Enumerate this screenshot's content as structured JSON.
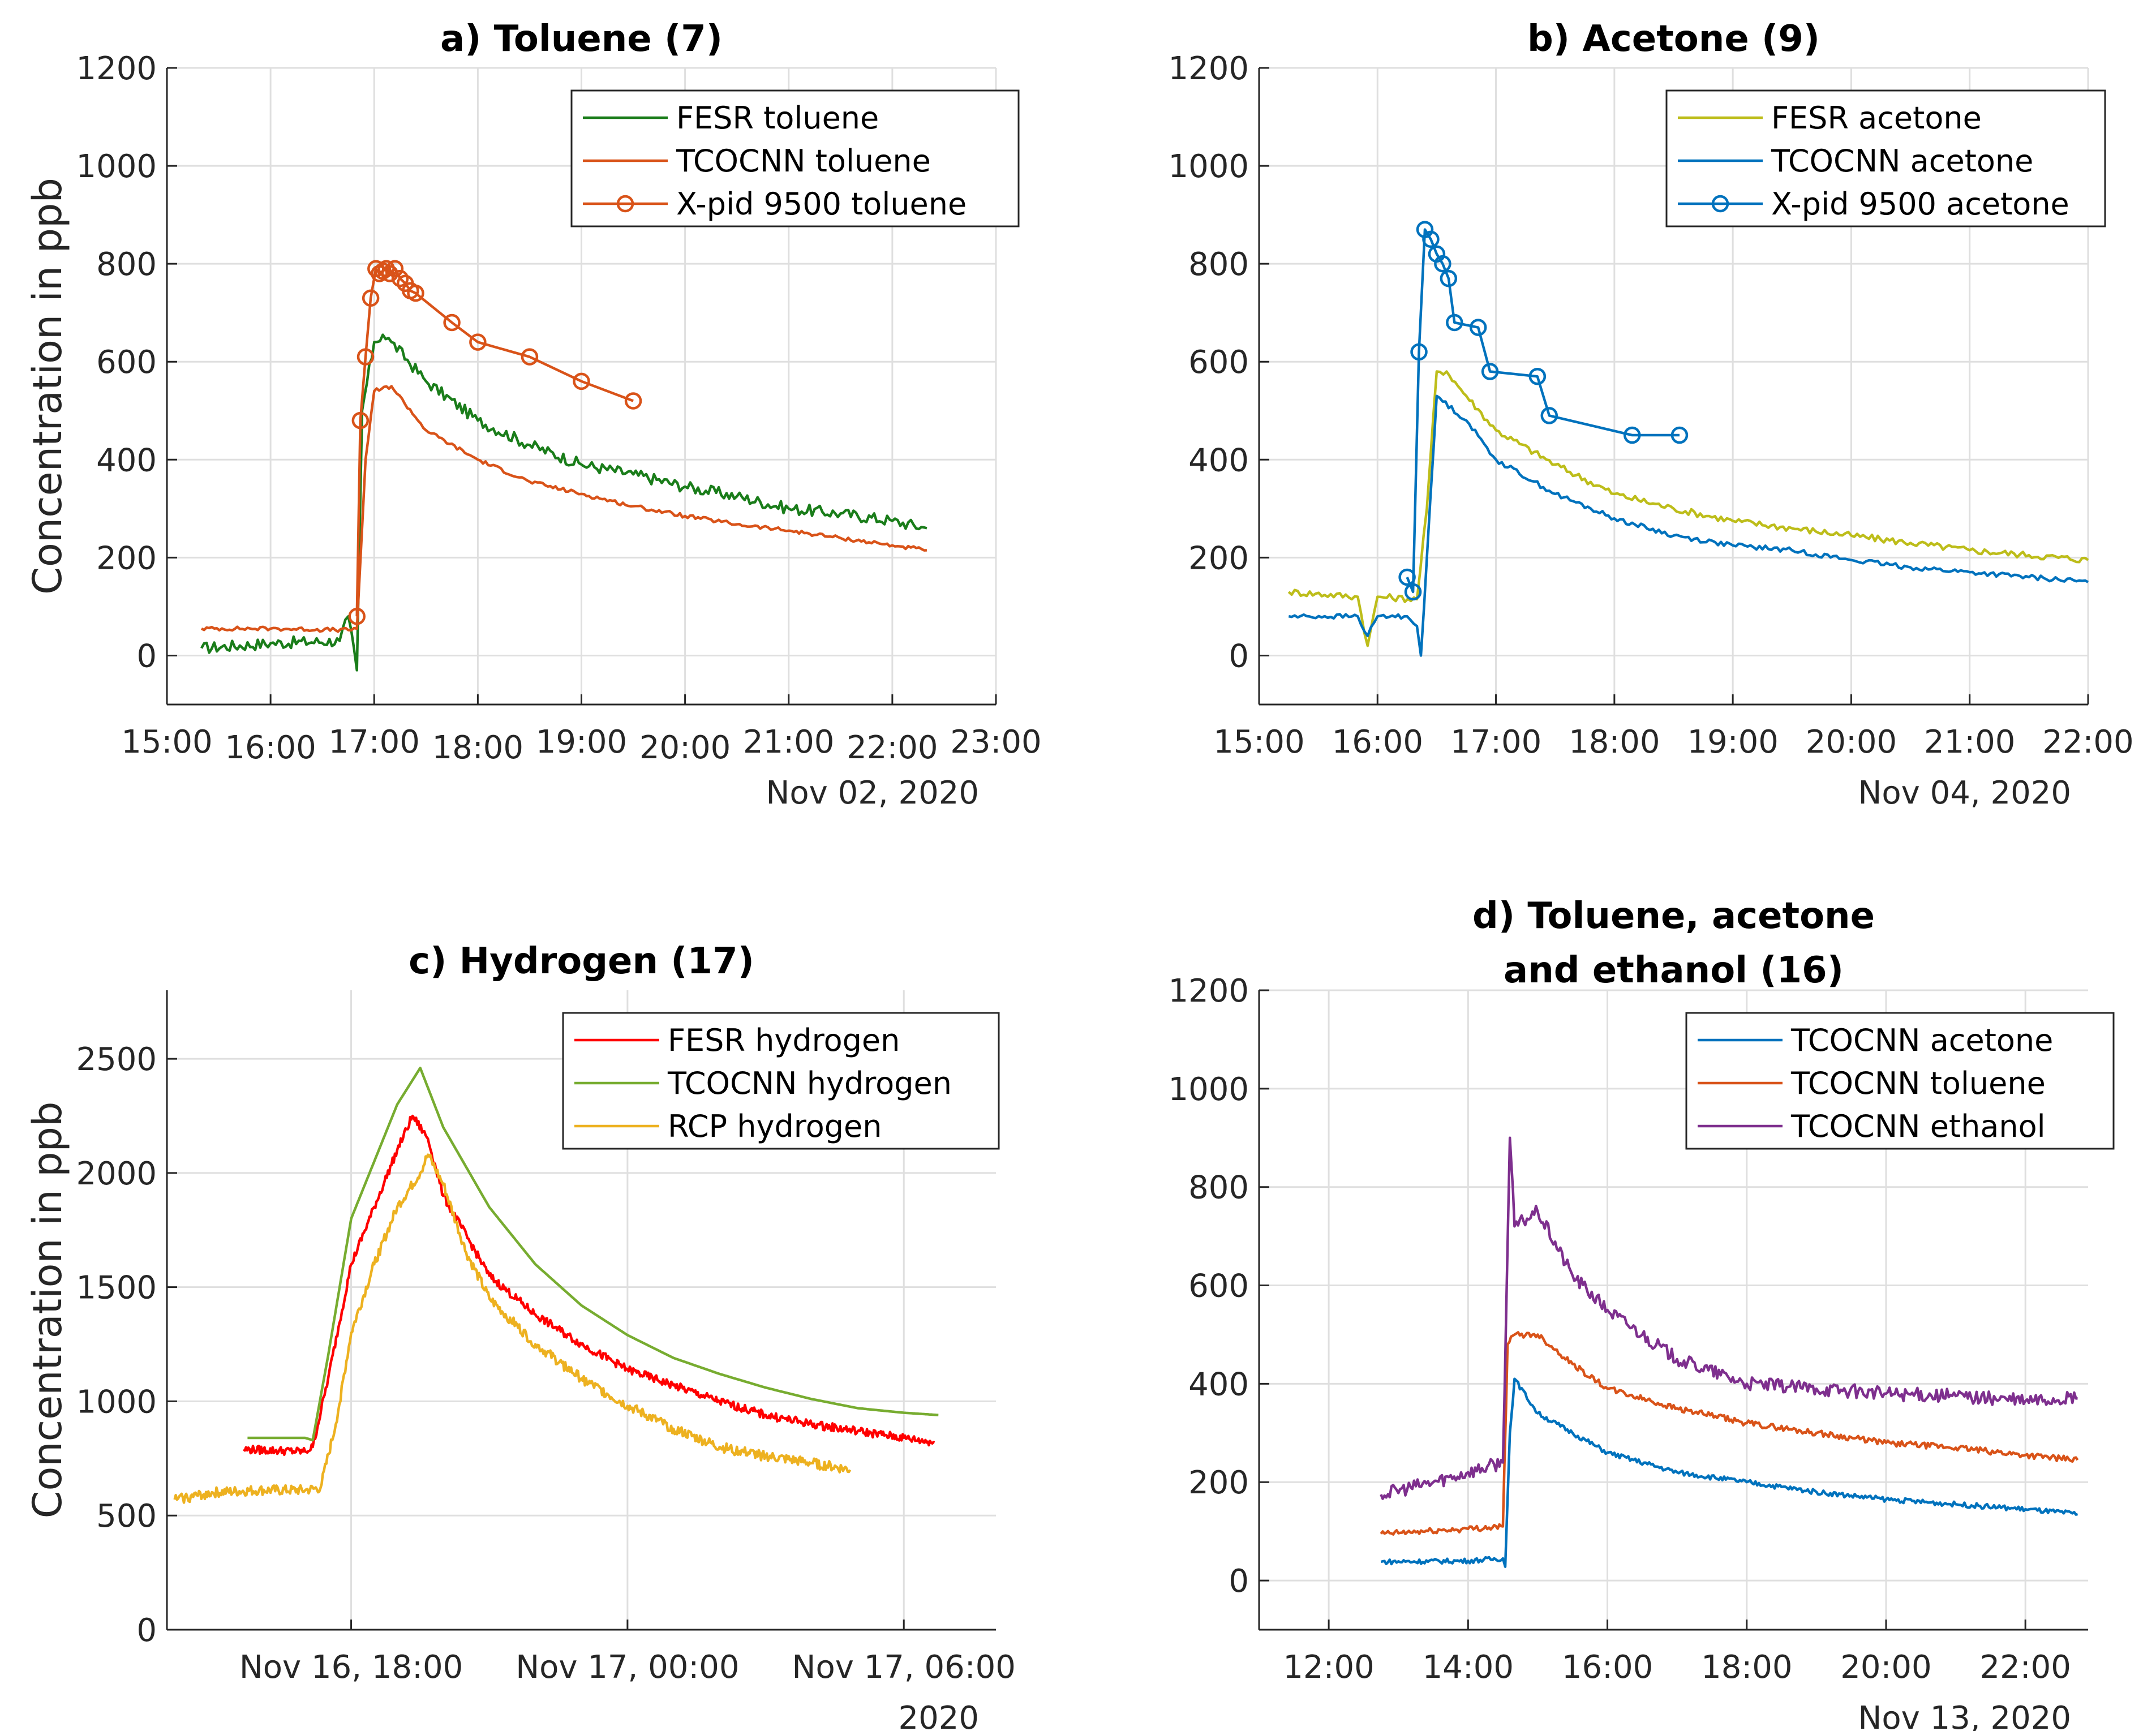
{
  "figure": {
    "ylabel": "Concentration in ppb"
  },
  "chart_data": [
    {
      "id": "a",
      "type": "line",
      "title": "a) Toluene (7)",
      "ylabel": "Concentration in ppb",
      "ylim": [
        -100,
        1200
      ],
      "yticks": [
        0,
        200,
        400,
        600,
        800,
        1000,
        1200
      ],
      "xlim": [
        15.0,
        23.0
      ],
      "xticks": [
        {
          "v": 15,
          "label": "15:00"
        },
        {
          "v": 16,
          "label": "16:00"
        },
        {
          "v": 17,
          "label": "17:00"
        },
        {
          "v": 18,
          "label": "18:00"
        },
        {
          "v": 19,
          "label": "19:00"
        },
        {
          "v": 20,
          "label": "20:00"
        },
        {
          "v": 21,
          "label": "21:00"
        },
        {
          "v": 22,
          "label": "22:00"
        },
        {
          "v": 23,
          "label": "23:00"
        }
      ],
      "date_label": "Nov 02, 2020",
      "grid": true,
      "legend": "top-right",
      "series": [
        {
          "name": "FESR toluene",
          "color": "#1a7d1a",
          "noise": 12,
          "x": [
            "15:20",
            "16:00",
            "16:40",
            "16:45",
            "16:50",
            "16:53",
            "17:00",
            "17:05",
            "17:10",
            "17:30",
            "18:00",
            "18:30",
            "19:00",
            "19:30",
            "20:00",
            "20:30",
            "21:00",
            "21:30",
            "22:00",
            "22:20"
          ],
          "y": [
            15,
            25,
            30,
            80,
            -30,
            500,
            640,
            655,
            640,
            560,
            480,
            430,
            390,
            370,
            345,
            325,
            300,
            290,
            275,
            260
          ]
        },
        {
          "name": "TCOCNN toluene",
          "color": "#d95319",
          "noise": 4,
          "x": [
            "15:20",
            "16:00",
            "16:45",
            "16:50",
            "16:55",
            "17:00",
            "17:10",
            "17:30",
            "18:00",
            "18:30",
            "19:00",
            "19:30",
            "20:00",
            "20:30",
            "21:00",
            "21:30",
            "22:00",
            "22:20"
          ],
          "y": [
            55,
            55,
            52,
            55,
            400,
            540,
            550,
            460,
            400,
            355,
            330,
            305,
            285,
            268,
            255,
            240,
            225,
            215
          ]
        },
        {
          "name": "X-pid 9500 toluene",
          "color": "#d95319",
          "marker": "circle",
          "x": [
            "16:50",
            "16:52",
            "16:55",
            "16:58",
            "17:01",
            "17:03",
            "17:05",
            "17:07",
            "17:09",
            "17:12",
            "17:15",
            "17:18",
            "17:21",
            "17:24",
            "17:45",
            "18:00",
            "18:30",
            "19:00",
            "19:30"
          ],
          "y": [
            80,
            480,
            610,
            730,
            790,
            780,
            785,
            790,
            780,
            790,
            770,
            760,
            745,
            740,
            680,
            640,
            610,
            560,
            520
          ]
        }
      ]
    },
    {
      "id": "b",
      "type": "line",
      "title": "b) Acetone (9)",
      "ylabel": "",
      "ylim": [
        -100,
        1200
      ],
      "yticks": [
        0,
        200,
        400,
        600,
        800,
        1000,
        1200
      ],
      "xlim": [
        15.0,
        22.0
      ],
      "xticks": [
        {
          "v": 15,
          "label": "15:00"
        },
        {
          "v": 16,
          "label": "16:00"
        },
        {
          "v": 17,
          "label": "17:00"
        },
        {
          "v": 18,
          "label": "18:00"
        },
        {
          "v": 19,
          "label": "19:00"
        },
        {
          "v": 20,
          "label": "20:00"
        },
        {
          "v": 21,
          "label": "21:00"
        },
        {
          "v": 22,
          "label": "22:00"
        }
      ],
      "date_label": "Nov 04, 2020",
      "grid": true,
      "legend": "top-right",
      "series": [
        {
          "name": "FESR acetone",
          "color": "#bdbd1a",
          "noise": 7,
          "x": [
            "15:15",
            "15:50",
            "15:55",
            "16:00",
            "16:20",
            "16:25",
            "16:30",
            "16:35",
            "16:45",
            "17:00",
            "17:30",
            "18:00",
            "18:30",
            "19:00",
            "19:30",
            "20:00",
            "20:30",
            "21:00",
            "21:30",
            "22:00"
          ],
          "y": [
            130,
            120,
            20,
            120,
            115,
            300,
            580,
            580,
            530,
            460,
            390,
            330,
            300,
            275,
            260,
            245,
            230,
            215,
            205,
            195
          ]
        },
        {
          "name": "TCOCNN acetone",
          "color": "#0072bd",
          "noise": 5,
          "x": [
            "15:15",
            "15:50",
            "15:55",
            "16:00",
            "16:15",
            "16:20",
            "16:22",
            "16:30",
            "16:45",
            "17:00",
            "17:30",
            "18:00",
            "18:30",
            "19:00",
            "19:30",
            "20:00",
            "20:30",
            "21:00",
            "21:30",
            "22:00"
          ],
          "y": [
            80,
            80,
            40,
            80,
            80,
            60,
            0,
            530,
            480,
            400,
            330,
            280,
            245,
            225,
            215,
            195,
            180,
            170,
            160,
            150
          ]
        },
        {
          "name": "X-pid 9500 acetone",
          "color": "#0072bd",
          "marker": "circle",
          "x": [
            "16:15",
            "16:18",
            "16:21",
            "16:24",
            "16:27",
            "16:30",
            "16:33",
            "16:36",
            "16:39",
            "16:51",
            "16:57",
            "17:21",
            "17:27",
            "18:09",
            "18:33"
          ],
          "y": [
            160,
            130,
            620,
            870,
            850,
            820,
            800,
            770,
            680,
            670,
            580,
            570,
            490,
            450,
            450
          ]
        }
      ]
    },
    {
      "id": "c",
      "type": "line",
      "title": "c) Hydrogen (17)",
      "ylabel": "Concentration in ppb",
      "ylim": [
        0,
        2800
      ],
      "yticks": [
        0,
        500,
        1000,
        1500,
        2000,
        2500
      ],
      "xlim": [
        14.0,
        32.0
      ],
      "xticks": [
        {
          "v": 18,
          "label": "Nov 16, 18:00"
        },
        {
          "v": 24,
          "label": "Nov 17, 00:00"
        },
        {
          "v": 30,
          "label": "Nov 17, 06:00"
        }
      ],
      "date_label": "2020",
      "grid": true,
      "legend": "top-right",
      "series": [
        {
          "name": "FESR hydrogen",
          "color": "#ff0000",
          "noise": 18,
          "x": [
            "15:40",
            "17:00",
            "17:10",
            "17:30",
            "18:00",
            "19:00",
            "19:20",
            "19:40",
            "20:00",
            "21:00",
            "22:00",
            "23:00",
            "Nov 17, 00:00",
            "Nov 17, 01:00",
            "Nov 17, 02:00",
            "Nov 17, 03:00",
            "Nov 17, 04:00",
            "Nov 17, 05:00",
            "Nov 17, 06:00",
            "Nov 17, 06:40"
          ],
          "y": [
            790,
            780,
            800,
            1100,
            1600,
            2100,
            2250,
            2150,
            1900,
            1550,
            1380,
            1250,
            1140,
            1070,
            1000,
            940,
            900,
            870,
            840,
            820
          ]
        },
        {
          "name": "TCOCNN hydrogen",
          "color": "#77ac30",
          "noise": 0,
          "x": [
            "15:45",
            "17:00",
            "17:10",
            "17:30",
            "18:00",
            "19:00",
            "19:30",
            "20:00",
            "21:00",
            "22:00",
            "23:00",
            "Nov 17, 00:00",
            "Nov 17, 01:00",
            "Nov 17, 02:00",
            "Nov 17, 03:00",
            "Nov 17, 04:00",
            "Nov 17, 05:00",
            "Nov 17, 06:00",
            "Nov 17, 06:45"
          ],
          "y": [
            840,
            840,
            830,
            1200,
            1800,
            2300,
            2460,
            2200,
            1850,
            1600,
            1420,
            1290,
            1190,
            1120,
            1060,
            1010,
            970,
            950,
            940
          ]
        },
        {
          "name": "RCP hydrogen",
          "color": "#edb120",
          "noise": 22,
          "x": [
            "14:10",
            "15:00",
            "16:00",
            "17:00",
            "17:20",
            "17:40",
            "18:00",
            "18:30",
            "19:00",
            "19:30",
            "19:40",
            "20:00",
            "20:30",
            "21:00",
            "22:00",
            "23:00",
            "Nov 17, 00:00",
            "Nov 17, 01:00",
            "Nov 17, 02:00",
            "Nov 17, 03:00",
            "Nov 17, 04:00",
            "Nov 17, 04:50"
          ],
          "y": [
            570,
            600,
            610,
            610,
            620,
            900,
            1300,
            1600,
            1850,
            2000,
            2080,
            1950,
            1650,
            1450,
            1250,
            1100,
            980,
            880,
            800,
            760,
            730,
            700
          ]
        }
      ]
    },
    {
      "id": "d",
      "type": "line",
      "title": "d) Toluene, acetone and ethanol (16)",
      "title_lines": [
        "d) Toluene, acetone",
        "and ethanol (16)"
      ],
      "ylabel": "",
      "ylim": [
        -100,
        1200
      ],
      "yticks": [
        0,
        200,
        400,
        600,
        800,
        1000,
        1200
      ],
      "xlim": [
        11.0,
        22.9
      ],
      "xticks": [
        {
          "v": 12,
          "label": "12:00"
        },
        {
          "v": 14,
          "label": "14:00"
        },
        {
          "v": 16,
          "label": "16:00"
        },
        {
          "v": 18,
          "label": "18:00"
        },
        {
          "v": 20,
          "label": "20:00"
        },
        {
          "v": 22,
          "label": "22:00"
        }
      ],
      "date_label": "Nov 13, 2020",
      "grid": true,
      "legend": "top-right",
      "series": [
        {
          "name": "TCOCNN acetone",
          "color": "#0072bd",
          "noise": 5,
          "x": [
            "12:45",
            "14:00",
            "14:30",
            "14:32",
            "14:36",
            "14:40",
            "15:00",
            "15:30",
            "16:00",
            "17:00",
            "18:00",
            "19:00",
            "20:00",
            "21:00",
            "22:00",
            "22:45"
          ],
          "y": [
            38,
            40,
            45,
            28,
            300,
            410,
            340,
            300,
            260,
            220,
            200,
            180,
            165,
            155,
            145,
            135
          ]
        },
        {
          "name": "TCOCNN toluene",
          "color": "#d95319",
          "noise": 6,
          "x": [
            "12:45",
            "14:00",
            "14:30",
            "14:34",
            "14:40",
            "15:00",
            "15:30",
            "16:00",
            "17:00",
            "18:00",
            "19:00",
            "20:00",
            "21:00",
            "22:00",
            "22:45"
          ],
          "y": [
            95,
            105,
            110,
            480,
            500,
            500,
            440,
            390,
            350,
            320,
            300,
            280,
            270,
            255,
            245
          ]
        },
        {
          "name": "TCOCNN ethanol",
          "color": "#7e2f8e",
          "noise": 14,
          "x": [
            "12:45",
            "13:30",
            "14:00",
            "14:30",
            "14:36",
            "14:40",
            "15:00",
            "15:30",
            "16:00",
            "16:30",
            "17:00",
            "18:00",
            "19:00",
            "20:00",
            "21:00",
            "22:00",
            "22:45"
          ],
          "y": [
            175,
            200,
            220,
            240,
            900,
            720,
            750,
            620,
            550,
            500,
            450,
            400,
            390,
            380,
            375,
            365,
            370
          ]
        }
      ]
    }
  ]
}
